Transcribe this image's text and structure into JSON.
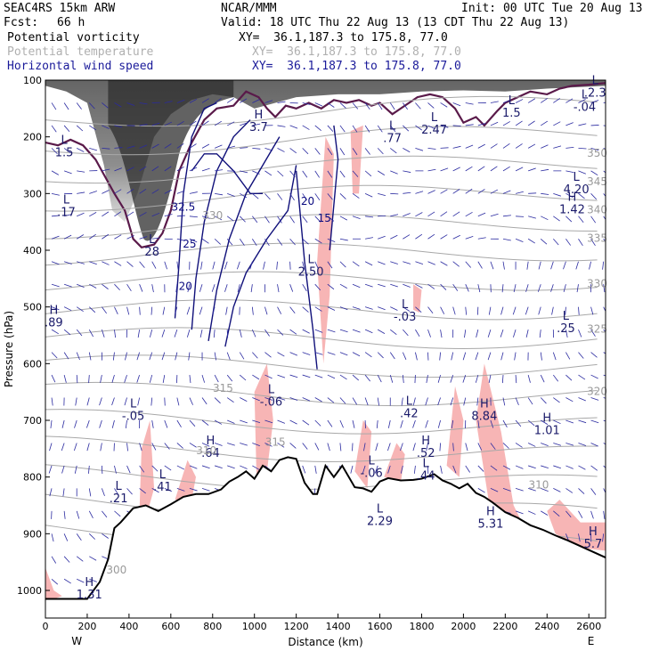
{
  "header": {
    "model": "SEAC4RS 15km ARW",
    "org": "NCAR/MMM",
    "init": "Init: 00 UTC Tue 20 Aug 13",
    "fcst_label": "Fcst:",
    "fcst_value": "66 h",
    "valid": "Valid: 18 UTC Thu 22 Aug 13 (13 CDT Thu 22 Aug 13)"
  },
  "legend": [
    {
      "name": "Potential vorticity",
      "xy": "XY=  36.1,187.3 to 175.8, 77.0",
      "color": "#000000"
    },
    {
      "name": "Potential temperature",
      "xy": "XY=  36.1,187.3 to 175.8, 77.0",
      "color": "#b0b0b0"
    },
    {
      "name": "Horizontal wind speed",
      "xy": "XY=  36.1,187.3 to 175.8, 77.0",
      "color": "#1a1a9a"
    }
  ],
  "chart_data": {
    "type": "cross-section",
    "xlabel": "Distance (km)",
    "ylabel": "Pressure (hPa)",
    "xlim": [
      0,
      2680
    ],
    "ylim": [
      1020,
      100
    ],
    "x_ticks": [
      "0",
      "200",
      "400",
      "600",
      "800",
      "1000",
      "1200",
      "1400",
      "1600",
      "1800",
      "2000",
      "2200",
      "2400",
      "2600"
    ],
    "y_ticks": [
      "100",
      "200",
      "300",
      "400",
      "500",
      "600",
      "700",
      "800",
      "900",
      "1000"
    ],
    "x_end_labels": {
      "left": "W",
      "right": "E"
    },
    "terrain": [
      [
        0,
        1015
      ],
      [
        120,
        1015
      ],
      [
        200,
        1015
      ],
      [
        260,
        985
      ],
      [
        300,
        945
      ],
      [
        330,
        890
      ],
      [
        360,
        880
      ],
      [
        420,
        855
      ],
      [
        480,
        850
      ],
      [
        540,
        860
      ],
      [
        600,
        848
      ],
      [
        660,
        835
      ],
      [
        720,
        830
      ],
      [
        780,
        830
      ],
      [
        840,
        822
      ],
      [
        880,
        808
      ],
      [
        920,
        800
      ],
      [
        960,
        790
      ],
      [
        1000,
        803
      ],
      [
        1040,
        780
      ],
      [
        1080,
        790
      ],
      [
        1120,
        770
      ],
      [
        1160,
        765
      ],
      [
        1200,
        768
      ],
      [
        1240,
        810
      ],
      [
        1280,
        830
      ],
      [
        1300,
        830
      ],
      [
        1340,
        780
      ],
      [
        1380,
        800
      ],
      [
        1420,
        780
      ],
      [
        1480,
        818
      ],
      [
        1520,
        820
      ],
      [
        1560,
        826
      ],
      [
        1600,
        808
      ],
      [
        1640,
        802
      ],
      [
        1700,
        806
      ],
      [
        1760,
        805
      ],
      [
        1800,
        803
      ],
      [
        1860,
        795
      ],
      [
        1900,
        806
      ],
      [
        1940,
        812
      ],
      [
        1980,
        820
      ],
      [
        2020,
        812
      ],
      [
        2060,
        828
      ],
      [
        2100,
        835
      ],
      [
        2140,
        845
      ],
      [
        2200,
        862
      ],
      [
        2260,
        872
      ],
      [
        2320,
        885
      ],
      [
        2380,
        893
      ],
      [
        2440,
        903
      ],
      [
        2500,
        912
      ],
      [
        2560,
        922
      ],
      [
        2620,
        932
      ],
      [
        2680,
        942
      ]
    ],
    "pv_max_labels": [
      {
        "kind": "L",
        "value": "1.5",
        "x": 90,
        "p": 225
      },
      {
        "kind": "L",
        "value": ".17",
        "x": 100,
        "p": 330
      },
      {
        "kind": "L",
        "value": "28",
        "x": 510,
        "p": 400
      },
      {
        "kind": "H",
        "value": ".89",
        "x": 40,
        "p": 525
      },
      {
        "kind": "L",
        "value": "-.05",
        "x": 420,
        "p": 690
      },
      {
        "kind": "L",
        "value": ".21",
        "x": 350,
        "p": 835
      },
      {
        "kind": "L",
        "value": ".41",
        "x": 560,
        "p": 815
      },
      {
        "kind": "H",
        "value": ".64",
        "x": 790,
        "p": 755
      },
      {
        "kind": "L",
        "value": "-.06",
        "x": 1080,
        "p": 665
      },
      {
        "kind": "L",
        "value": "2.50",
        "x": 1270,
        "p": 435
      },
      {
        "kind": "H",
        "value": "3.7",
        "x": 1020,
        "p": 180
      },
      {
        "kind": "L",
        "value": "2.47",
        "x": 1860,
        "p": 185
      },
      {
        "kind": "L",
        "value": ".77",
        "x": 1660,
        "p": 200
      },
      {
        "kind": "L",
        "value": ".42",
        "x": 1740,
        "p": 685
      },
      {
        "kind": "H",
        "value": ".52",
        "x": 1820,
        "p": 755
      },
      {
        "kind": "L",
        "value": ".44",
        "x": 1820,
        "p": 795
      },
      {
        "kind": "L",
        "value": "-.06",
        "x": 1560,
        "p": 790
      },
      {
        "kind": "L",
        "value": "-.03",
        "x": 1720,
        "p": 515
      },
      {
        "kind": "H",
        "value": "8.84",
        "x": 2100,
        "p": 690
      },
      {
        "kind": "H",
        "value": "1.01",
        "x": 2400,
        "p": 715
      },
      {
        "kind": "H",
        "value": "5.31",
        "x": 2130,
        "p": 880
      },
      {
        "kind": "L",
        "value": "2.29",
        "x": 1600,
        "p": 875
      },
      {
        "kind": "L",
        "value": "4.20",
        "x": 2540,
        "p": 290
      },
      {
        "kind": "H",
        "value": "1.42",
        "x": 2520,
        "p": 325
      },
      {
        "kind": "L",
        "value": ".25",
        "x": 2490,
        "p": 535
      },
      {
        "kind": "H",
        "value": "5.7",
        "x": 2620,
        "p": 915
      },
      {
        "kind": "L",
        "value": "1.5",
        "x": 2230,
        "p": 155
      },
      {
        "kind": "L",
        "value": "-.04",
        "x": 2580,
        "p": 145
      },
      {
        "kind": "L",
        "value": ".2.3",
        "x": 2630,
        "p": 120
      },
      {
        "kind": "H",
        "value": "1.31",
        "x": 210,
        "p": 1005
      }
    ],
    "theta_labels": [
      {
        "value": "350",
        "x": 2640,
        "p": 235
      },
      {
        "value": "345",
        "x": 2640,
        "p": 285
      },
      {
        "value": "340",
        "x": 2640,
        "p": 335
      },
      {
        "value": "335",
        "x": 2640,
        "p": 385
      },
      {
        "value": "330",
        "x": 2640,
        "p": 465
      },
      {
        "value": "325",
        "x": 2640,
        "p": 545
      },
      {
        "value": "320",
        "x": 2640,
        "p": 655
      },
      {
        "value": "315",
        "x": 850,
        "p": 650
      },
      {
        "value": "310",
        "x": 770,
        "p": 760
      },
      {
        "value": "330",
        "x": 800,
        "p": 345
      },
      {
        "value": "310",
        "x": 2360,
        "p": 820
      },
      {
        "value": "315",
        "x": 1100,
        "p": 745
      },
      {
        "value": "300",
        "x": 340,
        "p": 970
      }
    ],
    "wind_speed_labels": [
      {
        "value": "32.5",
        "x": 660,
        "p": 330
      },
      {
        "value": "25",
        "x": 690,
        "p": 395
      },
      {
        "value": "20",
        "x": 670,
        "p": 470
      },
      {
        "value": "20",
        "x": 1255,
        "p": 320
      },
      {
        "value": "15",
        "x": 1335,
        "p": 350
      }
    ]
  }
}
